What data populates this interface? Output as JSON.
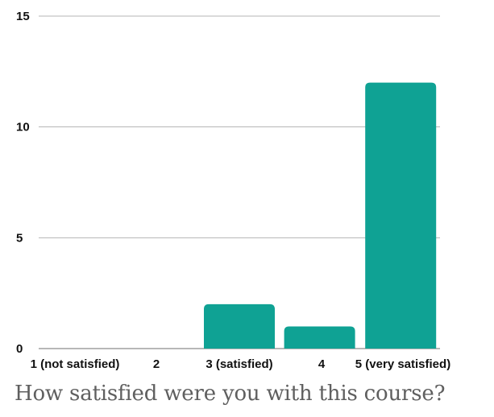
{
  "chart_data": {
    "type": "bar",
    "title": "How satisfied were you with this course?",
    "xlabel": "",
    "ylabel": "",
    "categories": [
      "1 (not satisfied)",
      "2",
      "3 (satisfied)",
      "4",
      "5 (very satisfied)"
    ],
    "values": [
      0,
      0,
      2,
      1,
      12
    ],
    "ylim": [
      0,
      15
    ],
    "yticks": [
      0,
      5,
      10,
      15
    ],
    "grid": true,
    "legend": "none",
    "bar_color": "#0fa294"
  }
}
